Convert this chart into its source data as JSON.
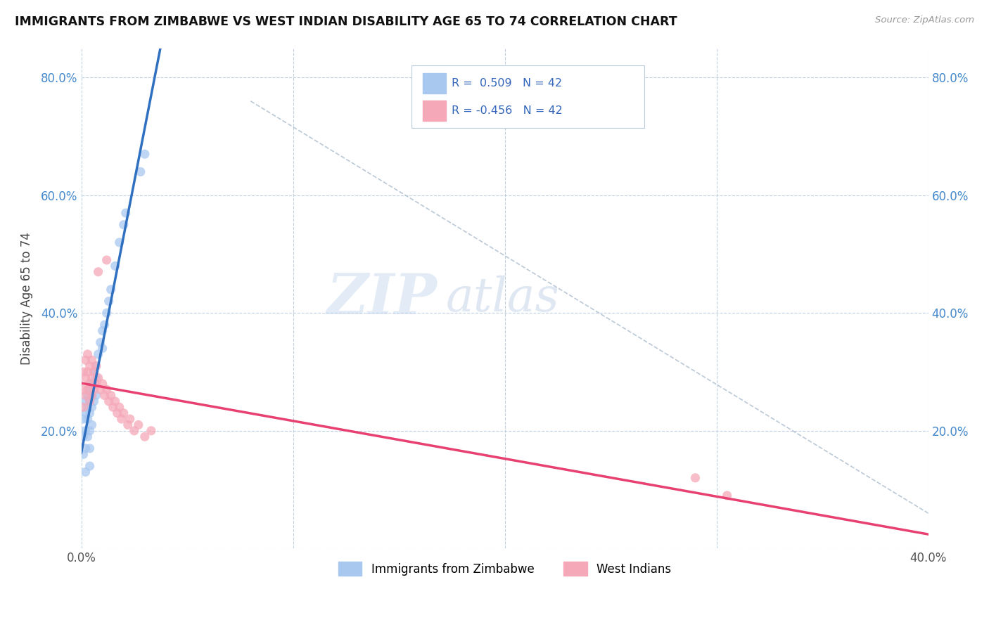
{
  "title": "IMMIGRANTS FROM ZIMBABWE VS WEST INDIAN DISABILITY AGE 65 TO 74 CORRELATION CHART",
  "source": "Source: ZipAtlas.com",
  "ylabel": "Disability Age 65 to 74",
  "xlim": [
    0.0,
    0.4
  ],
  "ylim": [
    0.0,
    0.85
  ],
  "color_blue": "#A8C8F0",
  "color_pink": "#F5A8B8",
  "color_blue_line": "#3070C0",
  "color_pink_line": "#E84070",
  "watermark_zip": "ZIP",
  "watermark_atlas": "atlas",
  "background_color": "#FFFFFF",
  "grid_color": "#C0D0E0",
  "zimbabwe_x": [
    0.001,
    0.001,
    0.001,
    0.002,
    0.002,
    0.002,
    0.002,
    0.003,
    0.003,
    0.003,
    0.003,
    0.004,
    0.004,
    0.004,
    0.004,
    0.004,
    0.005,
    0.005,
    0.005,
    0.005,
    0.006,
    0.006,
    0.006,
    0.007,
    0.007,
    0.007,
    0.008,
    0.009,
    0.01,
    0.01,
    0.011,
    0.012,
    0.013,
    0.014,
    0.016,
    0.018,
    0.02,
    0.021,
    0.028,
    0.03,
    0.002,
    0.004
  ],
  "zimbabwe_y": [
    0.22,
    0.19,
    0.16,
    0.25,
    0.23,
    0.2,
    0.17,
    0.26,
    0.24,
    0.22,
    0.19,
    0.27,
    0.25,
    0.23,
    0.2,
    0.17,
    0.28,
    0.26,
    0.24,
    0.21,
    0.3,
    0.28,
    0.25,
    0.31,
    0.29,
    0.26,
    0.33,
    0.35,
    0.37,
    0.34,
    0.38,
    0.4,
    0.42,
    0.44,
    0.48,
    0.52,
    0.55,
    0.57,
    0.64,
    0.67,
    0.13,
    0.14
  ],
  "westindian_x": [
    0.001,
    0.001,
    0.001,
    0.002,
    0.002,
    0.002,
    0.003,
    0.003,
    0.003,
    0.004,
    0.004,
    0.004,
    0.005,
    0.005,
    0.005,
    0.006,
    0.006,
    0.007,
    0.007,
    0.008,
    0.009,
    0.01,
    0.011,
    0.012,
    0.013,
    0.014,
    0.015,
    0.016,
    0.017,
    0.018,
    0.019,
    0.02,
    0.022,
    0.023,
    0.025,
    0.027,
    0.03,
    0.033,
    0.29,
    0.305,
    0.008,
    0.012
  ],
  "westindian_y": [
    0.3,
    0.27,
    0.24,
    0.32,
    0.29,
    0.26,
    0.33,
    0.3,
    0.27,
    0.31,
    0.28,
    0.25,
    0.32,
    0.29,
    0.26,
    0.3,
    0.27,
    0.31,
    0.28,
    0.29,
    0.27,
    0.28,
    0.26,
    0.27,
    0.25,
    0.26,
    0.24,
    0.25,
    0.23,
    0.24,
    0.22,
    0.23,
    0.21,
    0.22,
    0.2,
    0.21,
    0.19,
    0.2,
    0.12,
    0.09,
    0.47,
    0.49
  ]
}
